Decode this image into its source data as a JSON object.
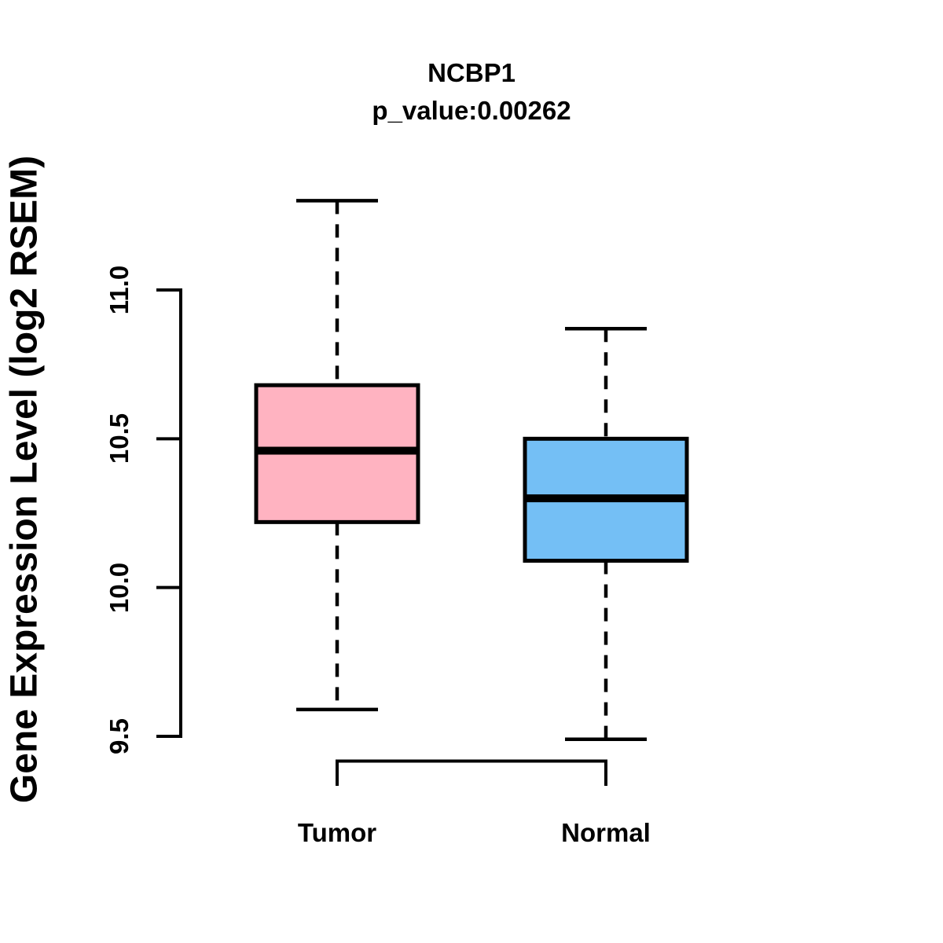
{
  "figure": {
    "background": "#ffffff",
    "text_color": "#000000"
  },
  "chart_data": {
    "type": "boxplot",
    "title": "NCBP1",
    "subtitle": "p_value:0.00262",
    "ylabel": "Gene Expression Level (log2 RSEM)",
    "xlabel": "",
    "categories": [
      "Tumor",
      "Normal"
    ],
    "ylim": [
      9.5,
      11.0
    ],
    "yticks": [
      9.5,
      10.0,
      10.5,
      11.0
    ],
    "ytick_labels": [
      "9.5",
      "10.0",
      "10.5",
      "11.0"
    ],
    "grid": false,
    "legend": "none",
    "series": [
      {
        "name": "Tumor",
        "fill_color": "#FFB3C1",
        "whisker_low": 9.59,
        "q1": 10.22,
        "median": 10.46,
        "q3": 10.68,
        "whisker_high": 11.3
      },
      {
        "name": "Normal",
        "fill_color": "#74BFF5",
        "whisker_low": 9.49,
        "q1": 10.09,
        "median": 10.3,
        "q3": 10.5,
        "whisker_high": 10.87
      }
    ],
    "stroke_color": "#000000"
  }
}
